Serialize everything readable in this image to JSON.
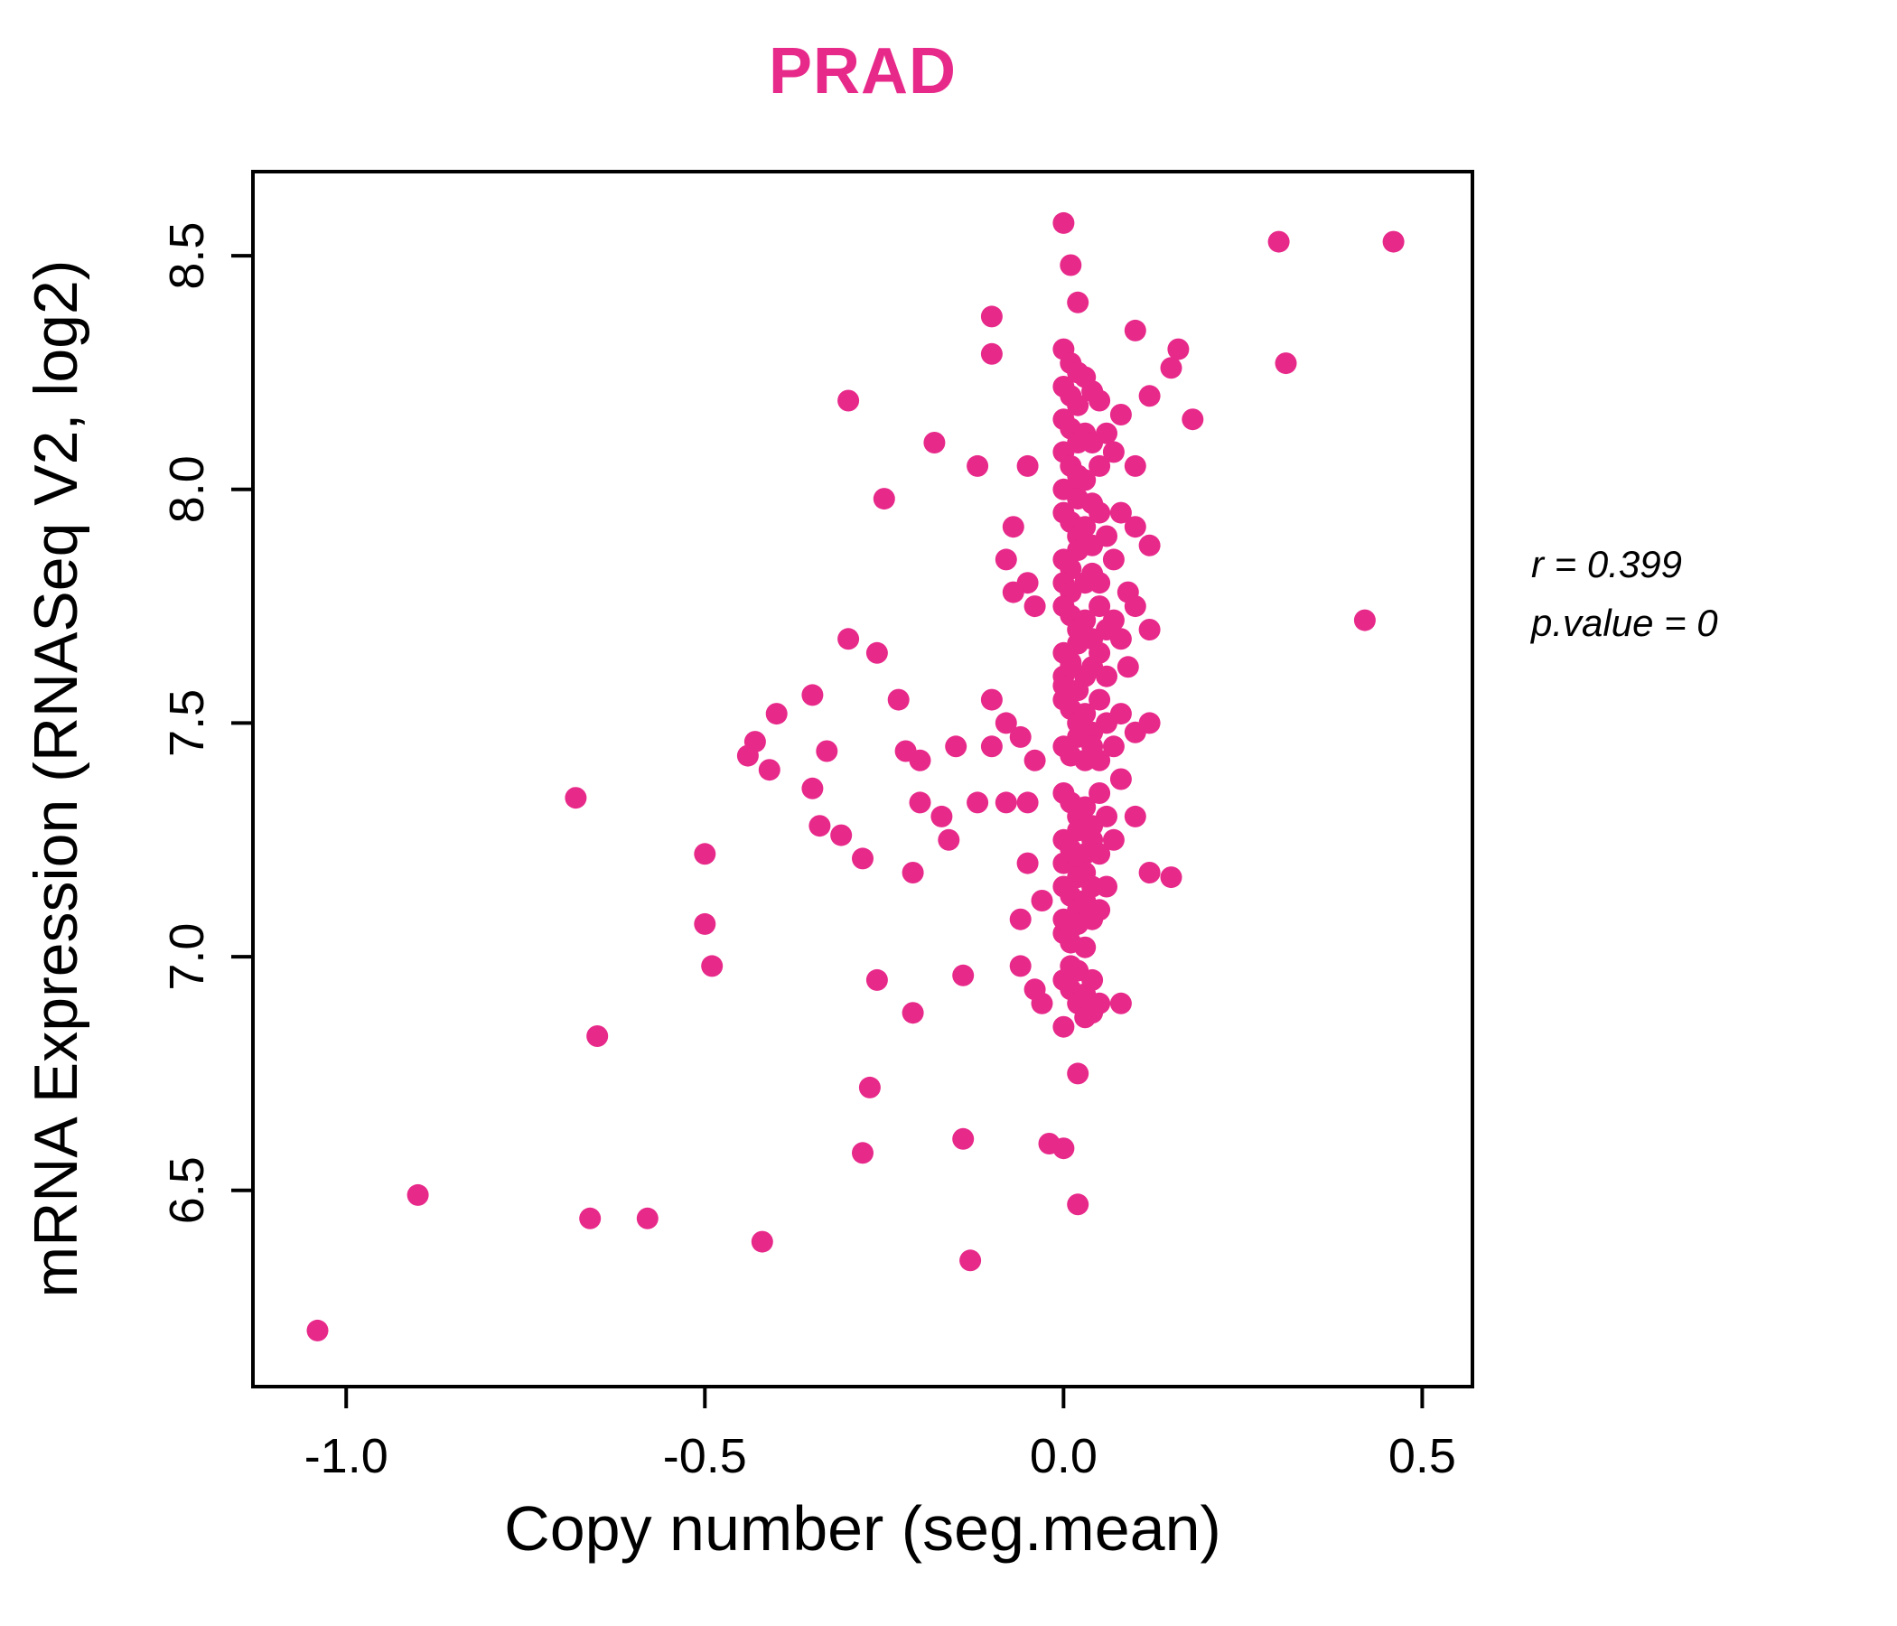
{
  "chart_data": {
    "type": "scatter",
    "title": "PRAD",
    "xlabel": "Copy number (seg.mean)",
    "ylabel": "mRNA Expression (RNASeq V2, log2)",
    "xlim": [
      -1.13,
      0.57
    ],
    "ylim": [
      6.08,
      8.68
    ],
    "x_ticks": [
      -1.0,
      -0.5,
      0.0,
      0.5
    ],
    "x_tick_labels": [
      "-1.0",
      "-0.5",
      "0.0",
      "0.5"
    ],
    "y_ticks": [
      6.5,
      7.0,
      7.5,
      8.0,
      8.5
    ],
    "y_tick_labels": [
      "6.5",
      "7.0",
      "7.5",
      "8.0",
      "8.5"
    ],
    "legend": "none",
    "grid": false,
    "point_color": "#E7298A",
    "title_color": "#E7298A",
    "annotation": {
      "line1": "r = 0.399",
      "line2": "p.value = 0"
    },
    "points": [
      [
        0.0,
        8.57
      ],
      [
        0.01,
        8.48
      ],
      [
        0.02,
        8.4
      ],
      [
        -0.1,
        8.37
      ],
      [
        0.1,
        8.34
      ],
      [
        -0.1,
        8.29
      ],
      [
        0.0,
        8.3
      ],
      [
        0.01,
        8.27
      ],
      [
        0.02,
        8.25
      ],
      [
        0.03,
        8.24
      ],
      [
        0.15,
        8.26
      ],
      [
        0.3,
        8.53
      ],
      [
        0.46,
        8.53
      ],
      [
        0.31,
        8.27
      ],
      [
        0.0,
        8.22
      ],
      [
        0.01,
        8.2
      ],
      [
        0.02,
        8.18
      ],
      [
        0.04,
        8.21
      ],
      [
        0.05,
        8.19
      ],
      [
        0.12,
        8.2
      ],
      [
        0.18,
        8.15
      ],
      [
        -0.3,
        8.19
      ],
      [
        0.16,
        8.3
      ],
      [
        0.0,
        8.15
      ],
      [
        0.01,
        8.13
      ],
      [
        0.02,
        8.1
      ],
      [
        0.03,
        8.12
      ],
      [
        0.0,
        8.08
      ],
      [
        0.01,
        8.05
      ],
      [
        0.02,
        8.03
      ],
      [
        0.04,
        8.1
      ],
      [
        0.05,
        8.05
      ],
      [
        0.06,
        8.12
      ],
      [
        0.07,
        8.08
      ],
      [
        0.08,
        8.16
      ],
      [
        -0.18,
        8.1
      ],
      [
        -0.12,
        8.05
      ],
      [
        -0.05,
        8.05
      ],
      [
        0.0,
        8.0
      ],
      [
        0.01,
        8.0
      ],
      [
        0.02,
        7.98
      ],
      [
        0.03,
        8.02
      ],
      [
        -0.25,
        7.98
      ],
      [
        0.1,
        8.05
      ],
      [
        0.04,
        7.97
      ],
      [
        0.0,
        7.95
      ],
      [
        0.01,
        7.93
      ],
      [
        0.02,
        7.9
      ],
      [
        0.03,
        7.92
      ],
      [
        0.04,
        7.88
      ],
      [
        0.05,
        7.95
      ],
      [
        0.0,
        7.85
      ],
      [
        0.01,
        7.83
      ],
      [
        0.02,
        7.87
      ],
      [
        0.03,
        7.8
      ],
      [
        0.06,
        7.9
      ],
      [
        0.07,
        7.85
      ],
      [
        0.1,
        7.92
      ],
      [
        0.12,
        7.88
      ],
      [
        -0.07,
        7.92
      ],
      [
        -0.08,
        7.85
      ],
      [
        -0.05,
        7.8
      ],
      [
        0.04,
        7.82
      ],
      [
        0.05,
        7.8
      ],
      [
        0.08,
        7.95
      ],
      [
        0.0,
        7.8
      ],
      [
        0.01,
        7.78
      ],
      [
        0.09,
        7.78
      ],
      [
        0.0,
        7.75
      ],
      [
        0.01,
        7.73
      ],
      [
        0.02,
        7.7
      ],
      [
        0.03,
        7.72
      ],
      [
        0.04,
        7.68
      ],
      [
        0.05,
        7.75
      ],
      [
        0.06,
        7.7
      ],
      [
        0.0,
        7.65
      ],
      [
        0.01,
        7.63
      ],
      [
        0.02,
        7.67
      ],
      [
        0.03,
        7.6
      ],
      [
        0.04,
        7.62
      ],
      [
        0.05,
        7.65
      ],
      [
        0.07,
        7.72
      ],
      [
        0.08,
        7.68
      ],
      [
        0.1,
        7.75
      ],
      [
        0.42,
        7.72
      ],
      [
        -0.04,
        7.75
      ],
      [
        -0.07,
        7.78
      ],
      [
        -0.3,
        7.68
      ],
      [
        -0.26,
        7.65
      ],
      [
        0.0,
        7.6
      ],
      [
        0.01,
        7.62
      ],
      [
        0.06,
        7.6
      ],
      [
        0.12,
        7.7
      ],
      [
        0.09,
        7.62
      ],
      [
        0.0,
        7.55
      ],
      [
        0.01,
        7.53
      ],
      [
        0.02,
        7.5
      ],
      [
        0.03,
        7.52
      ],
      [
        0.04,
        7.48
      ],
      [
        0.05,
        7.55
      ],
      [
        0.0,
        7.45
      ],
      [
        0.01,
        7.43
      ],
      [
        0.02,
        7.47
      ],
      [
        0.03,
        7.42
      ],
      [
        0.04,
        7.45
      ],
      [
        0.06,
        7.5
      ],
      [
        0.07,
        7.45
      ],
      [
        0.08,
        7.52
      ],
      [
        0.1,
        7.48
      ],
      [
        -0.1,
        7.55
      ],
      [
        -0.1,
        7.45
      ],
      [
        -0.08,
        7.5
      ],
      [
        -0.06,
        7.47
      ],
      [
        -0.04,
        7.42
      ],
      [
        -0.15,
        7.45
      ],
      [
        -0.2,
        7.42
      ],
      [
        -0.22,
        7.44
      ],
      [
        -0.23,
        7.55
      ],
      [
        -0.33,
        7.44
      ],
      [
        -0.35,
        7.56
      ],
      [
        -0.4,
        7.52
      ],
      [
        -0.41,
        7.4
      ],
      [
        -0.43,
        7.46
      ],
      [
        -0.44,
        7.43
      ],
      [
        0.05,
        7.42
      ],
      [
        0.12,
        7.5
      ],
      [
        0.0,
        7.58
      ],
      [
        0.02,
        7.57
      ],
      [
        0.0,
        7.35
      ],
      [
        0.01,
        7.33
      ],
      [
        0.02,
        7.3
      ],
      [
        0.03,
        7.32
      ],
      [
        0.04,
        7.28
      ],
      [
        0.05,
        7.35
      ],
      [
        0.0,
        7.25
      ],
      [
        0.01,
        7.23
      ],
      [
        0.02,
        7.27
      ],
      [
        0.03,
        7.22
      ],
      [
        0.04,
        7.25
      ],
      [
        0.06,
        7.3
      ],
      [
        0.08,
        7.38
      ],
      [
        0.1,
        7.3
      ],
      [
        -0.05,
        7.33
      ],
      [
        -0.08,
        7.33
      ],
      [
        -0.12,
        7.33
      ],
      [
        -0.17,
        7.3
      ],
      [
        -0.2,
        7.33
      ],
      [
        -0.16,
        7.25
      ],
      [
        -0.21,
        7.18
      ],
      [
        -0.28,
        7.21
      ],
      [
        -0.31,
        7.26
      ],
      [
        -0.34,
        7.28
      ],
      [
        -0.35,
        7.36
      ],
      [
        -0.68,
        7.34
      ],
      [
        0.05,
        7.22
      ],
      [
        0.07,
        7.25
      ],
      [
        0.12,
        7.18
      ],
      [
        0.15,
        7.17
      ],
      [
        0.0,
        7.2
      ],
      [
        0.02,
        7.2
      ],
      [
        0.03,
        7.18
      ],
      [
        0.0,
        7.15
      ],
      [
        0.01,
        7.13
      ],
      [
        0.02,
        7.1
      ],
      [
        0.03,
        7.12
      ],
      [
        0.04,
        7.08
      ],
      [
        0.0,
        7.05
      ],
      [
        0.01,
        7.03
      ],
      [
        0.02,
        7.07
      ],
      [
        0.03,
        7.02
      ],
      [
        0.05,
        7.1
      ],
      [
        0.06,
        7.15
      ],
      [
        -0.05,
        7.2
      ],
      [
        -0.06,
        7.08
      ],
      [
        -0.03,
        7.12
      ],
      [
        0.04,
        7.15
      ],
      [
        0.02,
        7.17
      ],
      [
        -0.5,
        7.07
      ],
      [
        -0.5,
        7.22
      ],
      [
        0.0,
        7.08
      ],
      [
        0.01,
        7.06
      ],
      [
        0.0,
        6.95
      ],
      [
        0.01,
        6.93
      ],
      [
        0.02,
        6.9
      ],
      [
        0.03,
        6.92
      ],
      [
        0.04,
        6.88
      ],
      [
        0.0,
        6.85
      ],
      [
        0.02,
        6.97
      ],
      [
        0.03,
        6.87
      ],
      [
        0.05,
        6.9
      ],
      [
        0.08,
        6.9
      ],
      [
        -0.03,
        6.9
      ],
      [
        -0.06,
        6.98
      ],
      [
        -0.14,
        6.96
      ],
      [
        -0.21,
        6.88
      ],
      [
        -0.26,
        6.95
      ],
      [
        -0.49,
        6.98
      ],
      [
        0.01,
        6.98
      ],
      [
        0.04,
        6.95
      ],
      [
        -0.04,
        6.93
      ],
      [
        0.02,
        6.75
      ],
      [
        -0.27,
        6.72
      ],
      [
        0.0,
        6.59
      ],
      [
        -0.02,
        6.6
      ],
      [
        -0.14,
        6.61
      ],
      [
        -0.28,
        6.58
      ],
      [
        0.02,
        6.47
      ],
      [
        -0.65,
        6.83
      ],
      [
        -0.66,
        6.44
      ],
      [
        -0.58,
        6.44
      ],
      [
        -0.42,
        6.39
      ],
      [
        -0.9,
        6.49
      ],
      [
        -0.13,
        6.35
      ],
      [
        -1.04,
        6.2
      ]
    ]
  }
}
